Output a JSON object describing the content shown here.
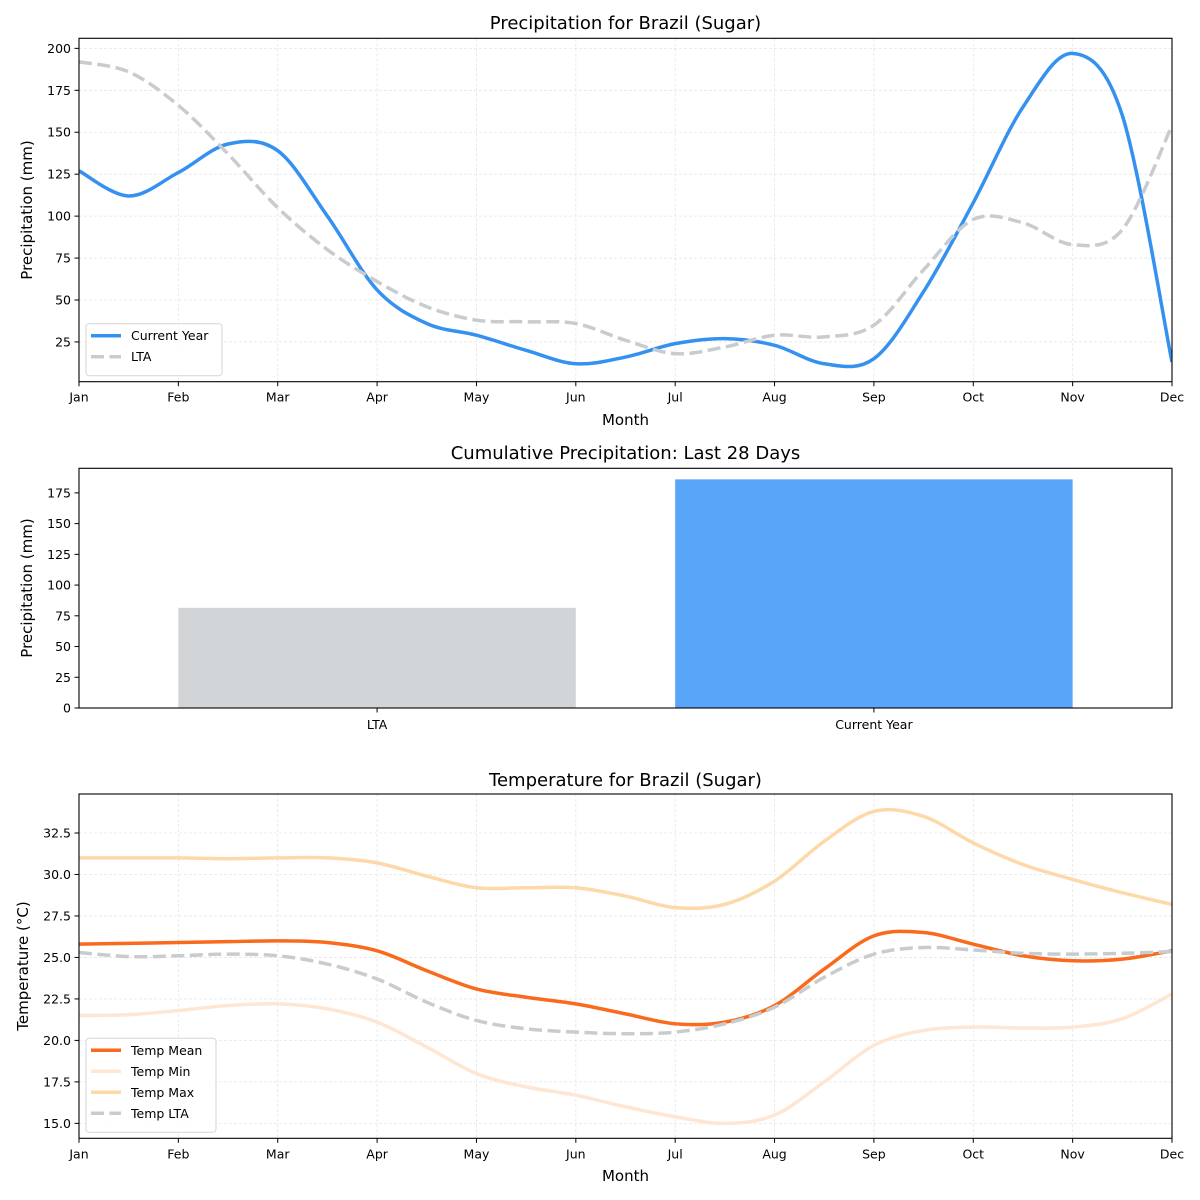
{
  "chart_data": [
    {
      "type": "line",
      "title": "Precipitation for Brazil (Sugar)",
      "xlabel": "Month",
      "ylabel": "Precipitation (mm)",
      "x_tick_labels": [
        "Jan",
        "Feb",
        "Mar",
        "Apr",
        "May",
        "Jun",
        "Jul",
        "Aug",
        "Sep",
        "Oct",
        "Nov",
        "Dec"
      ],
      "y_ticks": [
        25,
        50,
        75,
        100,
        125,
        150,
        175,
        200
      ],
      "xlim": [
        0,
        11
      ],
      "ylim": [
        1.3,
        206
      ],
      "grid": true,
      "legend_position": "lower-left",
      "x": [
        0,
        0.5,
        1,
        1.5,
        2,
        2.5,
        3,
        3.5,
        4,
        4.5,
        5,
        5.5,
        6,
        6.5,
        7,
        7.5,
        8,
        8.5,
        9,
        9.5,
        10,
        10.5,
        11
      ],
      "series": [
        {
          "name": "Current Year",
          "color": "#3591f0",
          "style": "solid",
          "values": [
            127,
            112,
            126,
            143,
            139,
            100,
            56,
            36,
            29,
            20,
            12,
            16,
            24,
            27,
            23,
            12,
            15,
            55,
            108,
            165,
            197,
            160,
            13
          ]
        },
        {
          "name": "LTA",
          "color": "#c8cccf",
          "style": "dashed",
          "values": [
            192,
            186,
            166,
            137,
            105,
            80,
            61,
            46,
            38,
            37,
            36,
            26,
            18,
            22,
            29,
            28,
            35,
            68,
            98,
            96,
            83,
            92,
            154
          ]
        }
      ]
    },
    {
      "type": "bar",
      "title": "Cumulative Precipitation: Last 28 Days",
      "xlabel": "",
      "ylabel": "Precipitation (mm)",
      "categories": [
        "LTA",
        "Current Year"
      ],
      "values": [
        81.5,
        186
      ],
      "colors": [
        "#d1d5d8",
        "#58a5f9"
      ],
      "y_ticks": [
        0,
        25,
        50,
        75,
        100,
        125,
        150,
        175
      ],
      "ylim": [
        0,
        195
      ]
    },
    {
      "type": "line",
      "title": "Temperature for Brazil (Sugar)",
      "xlabel": "Month",
      "ylabel": "Temperature (°C)",
      "x_tick_labels": [
        "Jan",
        "Feb",
        "Mar",
        "Apr",
        "May",
        "Jun",
        "Jul",
        "Aug",
        "Sep",
        "Oct",
        "Nov",
        "Dec"
      ],
      "y_ticks": [
        15.0,
        17.5,
        20.0,
        22.5,
        25.0,
        27.5,
        30.0,
        32.5
      ],
      "y_tick_labels": [
        "15.0",
        "17.5",
        "20.0",
        "22.5",
        "25.0",
        "27.5",
        "30.0",
        "32.5"
      ],
      "xlim": [
        0,
        11
      ],
      "ylim": [
        14.1,
        34.85
      ],
      "grid": true,
      "legend_position": "lower-left",
      "x": [
        0,
        0.5,
        1,
        1.5,
        2,
        2.5,
        3,
        3.5,
        4,
        4.5,
        5,
        5.5,
        6,
        6.5,
        7,
        7.5,
        8,
        8.5,
        9,
        9.5,
        10,
        10.5,
        11
      ],
      "series": [
        {
          "name": "Temp Mean",
          "color": "#f96a1c",
          "style": "solid",
          "values": [
            25.8,
            25.85,
            25.9,
            25.95,
            26.0,
            25.9,
            25.4,
            24.2,
            23.1,
            22.6,
            22.2,
            21.6,
            21.0,
            21.1,
            22.1,
            24.3,
            26.3,
            26.5,
            25.8,
            25.1,
            24.8,
            24.9,
            25.4
          ]
        },
        {
          "name": "Temp Min",
          "color": "#fee6d3",
          "style": "solid",
          "values": [
            21.5,
            21.55,
            21.8,
            22.1,
            22.2,
            21.9,
            21.1,
            19.6,
            18.0,
            17.2,
            16.7,
            16.0,
            15.4,
            15.0,
            15.5,
            17.5,
            19.7,
            20.6,
            20.8,
            20.75,
            20.8,
            21.3,
            22.8
          ]
        },
        {
          "name": "Temp Max",
          "color": "#fdd9a9",
          "style": "solid",
          "values": [
            31.0,
            31.0,
            31.0,
            30.95,
            31.0,
            31.0,
            30.7,
            29.9,
            29.2,
            29.2,
            29.2,
            28.7,
            28.0,
            28.2,
            29.6,
            32.0,
            33.8,
            33.5,
            31.9,
            30.6,
            29.7,
            28.9,
            28.2
          ]
        },
        {
          "name": "Temp LTA",
          "color": "#c8cccf",
          "style": "dashed",
          "values": [
            25.3,
            25.05,
            25.1,
            25.2,
            25.1,
            24.6,
            23.7,
            22.3,
            21.2,
            20.7,
            20.5,
            20.4,
            20.5,
            21.0,
            22.0,
            23.8,
            25.2,
            25.6,
            25.45,
            25.25,
            25.2,
            25.25,
            25.35
          ]
        }
      ]
    }
  ]
}
